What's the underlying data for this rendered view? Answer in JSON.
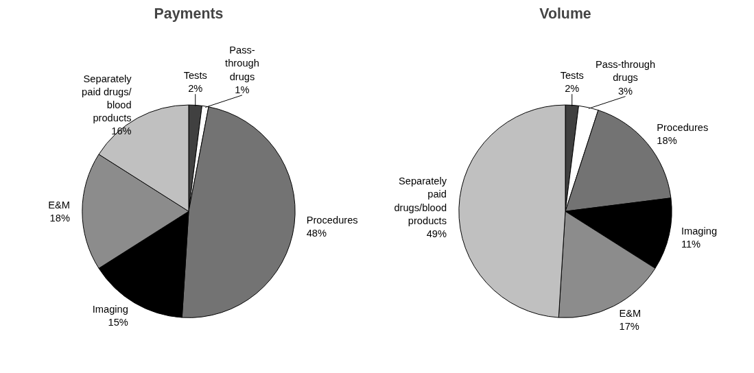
{
  "chart_data": [
    {
      "type": "pie",
      "title": "Payments",
      "legend": false,
      "categories": [
        "Tests",
        "Pass-\nthrough\ndrugs",
        "Procedures",
        "Imaging",
        "E&M",
        "Separately\npaid drugs/\nblood\nproducts"
      ],
      "values": [
        2,
        1,
        48,
        15,
        18,
        16
      ],
      "value_labels": [
        "2%",
        "1%",
        "48%",
        "15%",
        "18%",
        "16%"
      ],
      "colors": [
        "#404040",
        "#ffffff",
        "#737373",
        "#000000",
        "#8c8c8c",
        "#c0c0c0"
      ]
    },
    {
      "type": "pie",
      "title": "Volume",
      "legend": false,
      "categories": [
        "Tests",
        "Pass-through\ndrugs",
        "Procedures",
        "Imaging",
        "E&M",
        "Separately\npaid\ndrugs/blood\nproducts"
      ],
      "values": [
        2,
        3,
        18,
        11,
        17,
        49
      ],
      "value_labels": [
        "2%",
        "3%",
        "18%",
        "11%",
        "17%",
        "49%"
      ],
      "colors": [
        "#404040",
        "#ffffff",
        "#737373",
        "#000000",
        "#8c8c8c",
        "#c0c0c0"
      ]
    }
  ]
}
